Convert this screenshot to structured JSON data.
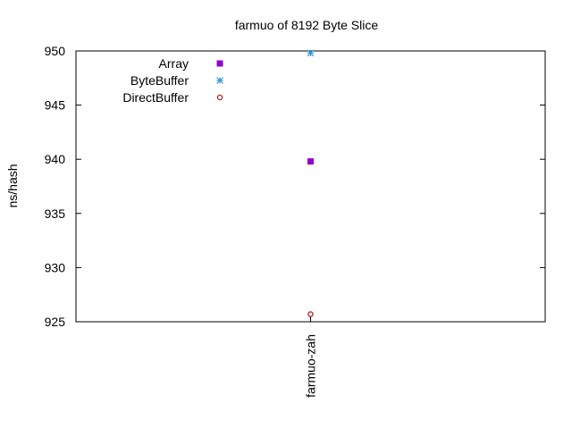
{
  "chart_data": {
    "type": "scatter",
    "title": "farmuo of 8192 Byte Slice",
    "ylabel": "ns/hash",
    "xlabel": "",
    "categories": [
      "farmuo-zah"
    ],
    "ylim": [
      925,
      950
    ],
    "yticks": [
      925,
      930,
      935,
      940,
      945,
      950
    ],
    "grid": false,
    "legend_position": "top-left",
    "series": [
      {
        "name": "Array",
        "marker": "filled-square",
        "color": "#9400d3",
        "values": [
          939.8
        ]
      },
      {
        "name": "ByteBuffer",
        "marker": "asterisk",
        "color": "#3a9ad9",
        "values": [
          949.8
        ]
      },
      {
        "name": "DirectBuffer",
        "marker": "open-circle",
        "color": "#b22222",
        "values": [
          925.7
        ]
      }
    ]
  }
}
